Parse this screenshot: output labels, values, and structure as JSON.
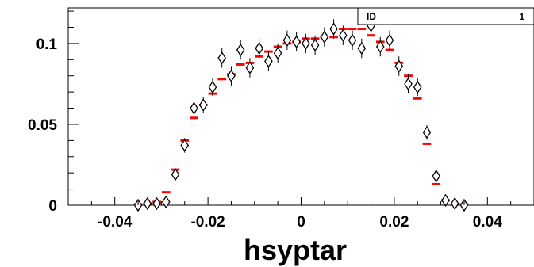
{
  "chart_data": {
    "type": "scatter",
    "xlabel": "hsyptar",
    "ylabel": "",
    "xlim": [
      -0.05,
      0.05
    ],
    "ylim": [
      0,
      0.122
    ],
    "x_ticks": [
      {
        "value": -0.04,
        "label": "-0.04"
      },
      {
        "value": -0.02,
        "label": "-0.02"
      },
      {
        "value": 0,
        "label": "0"
      },
      {
        "value": 0.02,
        "label": "0.02"
      },
      {
        "value": 0.04,
        "label": "0.04"
      }
    ],
    "y_ticks": [
      {
        "value": 0,
        "label": "0"
      },
      {
        "value": 0.05,
        "label": "0.05"
      },
      {
        "value": 0.1,
        "label": "0.1"
      }
    ],
    "stats_box": {
      "label": "ID",
      "value": "1"
    },
    "histogram": {
      "bin_width": 0.002,
      "x": [
        -0.035,
        -0.033,
        -0.031,
        -0.029,
        -0.027,
        -0.025,
        -0.023,
        -0.021,
        -0.019,
        -0.017,
        -0.015,
        -0.013,
        -0.011,
        -0.009,
        -0.007,
        -0.005,
        -0.003,
        -0.001,
        0.001,
        0.003,
        0.005,
        0.007,
        0.009,
        0.011,
        0.013,
        0.015,
        0.017,
        0.019,
        0.021,
        0.023,
        0.025,
        0.027,
        0.029,
        0.031,
        0.033,
        0.035
      ],
      "values": [
        0.0005,
        0.001,
        0.002,
        0.008,
        0.022,
        0.04,
        0.054,
        0.062,
        0.069,
        0.078,
        0.081,
        0.087,
        0.088,
        0.092,
        0.095,
        0.098,
        0.1,
        0.101,
        0.103,
        0.103,
        0.104,
        0.104,
        0.109,
        0.109,
        0.109,
        0.105,
        0.101,
        0.096,
        0.088,
        0.08,
        0.066,
        0.038,
        0.013,
        0.003,
        0.001,
        0.0005
      ]
    },
    "points": {
      "x": [
        -0.035,
        -0.033,
        -0.031,
        -0.029,
        -0.027,
        -0.025,
        -0.023,
        -0.021,
        -0.019,
        -0.017,
        -0.015,
        -0.013,
        -0.011,
        -0.009,
        -0.007,
        -0.005,
        -0.003,
        -0.001,
        0.001,
        0.003,
        0.005,
        0.007,
        0.009,
        0.011,
        0.013,
        0.015,
        0.017,
        0.019,
        0.021,
        0.023,
        0.025,
        0.027,
        0.029,
        0.031,
        0.033,
        0.035
      ],
      "y": [
        0.0,
        0.001,
        0.001,
        0.002,
        0.019,
        0.037,
        0.06,
        0.062,
        0.073,
        0.091,
        0.08,
        0.096,
        0.085,
        0.097,
        0.089,
        0.094,
        0.102,
        0.101,
        0.1,
        0.099,
        0.104,
        0.109,
        0.105,
        0.102,
        0.097,
        0.111,
        0.098,
        0.102,
        0.086,
        0.075,
        0.073,
        0.045,
        0.018,
        0.003,
        0.001,
        0.0
      ],
      "yerr": [
        0.0004,
        0.0008,
        0.001,
        0.0015,
        0.0035,
        0.0045,
        0.005,
        0.005,
        0.0055,
        0.006,
        0.006,
        0.006,
        0.006,
        0.006,
        0.006,
        0.006,
        0.006,
        0.006,
        0.006,
        0.006,
        0.006,
        0.006,
        0.006,
        0.006,
        0.006,
        0.006,
        0.006,
        0.006,
        0.006,
        0.006,
        0.0055,
        0.0045,
        0.003,
        0.0015,
        0.0008,
        0.0004
      ]
    }
  }
}
